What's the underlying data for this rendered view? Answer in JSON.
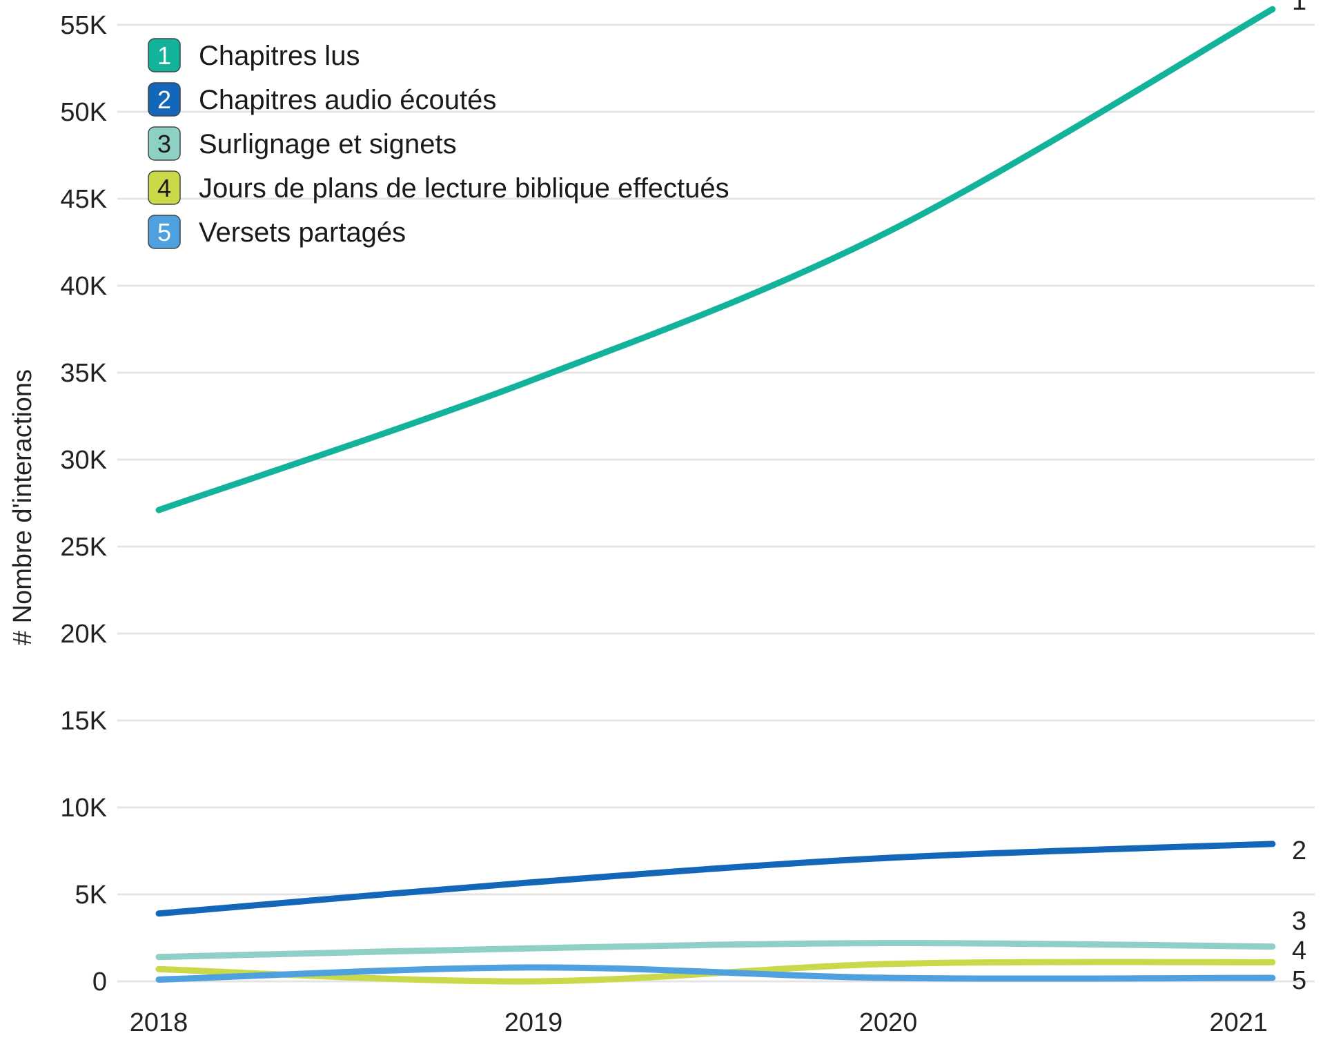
{
  "chart_data": {
    "type": "line",
    "ylabel": "# Nombre d'interactions",
    "xlabel": "",
    "x": [
      "2018",
      "2019",
      "2020",
      "2021"
    ],
    "ylim": [
      0,
      56000
    ],
    "yticks": [
      0,
      5000,
      10000,
      15000,
      20000,
      25000,
      30000,
      35000,
      40000,
      45000,
      50000,
      55000
    ],
    "ytick_labels": [
      "0",
      "5K",
      "10K",
      "15K",
      "20K",
      "25K",
      "30K",
      "35K",
      "40K",
      "45K",
      "50K",
      "55K"
    ],
    "grid": true,
    "legend_position": "top-left",
    "series": [
      {
        "id": "1",
        "name": "Chapitres lus",
        "color": "#12b39a",
        "values": [
          27100,
          34600,
          43100,
          55900
        ]
      },
      {
        "id": "2",
        "name": "Chapitres audio écoutés",
        "color": "#1466b8",
        "values": [
          3900,
          5700,
          7100,
          7900
        ]
      },
      {
        "id": "3",
        "name": "Surlignage et signets",
        "color": "#8fd0c6",
        "values": [
          1400,
          1900,
          2200,
          2000
        ]
      },
      {
        "id": "4",
        "name": "Jours de plans de lecture biblique effectués",
        "color": "#c9d94a",
        "values": [
          700,
          0,
          1000,
          1100
        ]
      },
      {
        "id": "5",
        "name": "Versets partagés",
        "color": "#4fa0de",
        "values": [
          100,
          800,
          200,
          200
        ]
      }
    ]
  }
}
